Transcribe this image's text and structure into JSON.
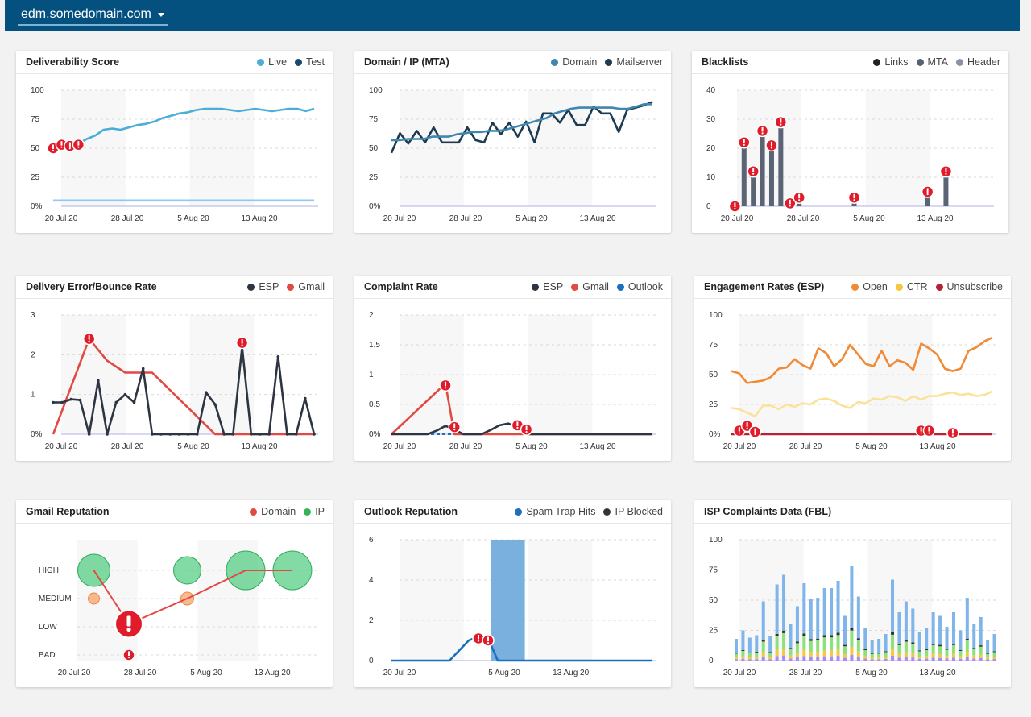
{
  "header": {
    "domain": "edm.somedomain.com"
  },
  "panels": [
    {
      "title": "Deliverability Score",
      "legend": [
        {
          "label": "Live",
          "color": "#4aaed9"
        },
        {
          "label": "Test",
          "color": "#154a6e"
        }
      ],
      "chart_data": {
        "type": "line",
        "ylim": [
          0,
          100
        ],
        "yticks": [
          "100",
          "75",
          "50",
          "25",
          "0%"
        ],
        "xticks": [
          "20 Jul 20",
          "28 Jul 20",
          "5 Aug 20",
          "13 Aug 20"
        ],
        "series": [
          {
            "name": "Live",
            "color": "#4aaed9",
            "values": [
              51,
              52,
              53,
              54,
              58,
              61,
              66,
              67,
              66,
              68,
              70,
              71,
              73,
              76,
              78,
              80,
              81,
              83,
              84,
              84,
              84,
              83,
              82,
              83,
              84,
              83,
              82,
              83,
              84,
              84,
              82,
              84
            ]
          },
          {
            "name": "Test",
            "color": "#8cc9f5",
            "values": [
              5,
              5,
              5,
              5,
              5,
              5,
              5,
              5,
              5,
              5,
              5,
              5,
              5,
              5,
              5,
              5,
              5,
              5,
              5,
              5,
              5,
              5,
              5,
              5,
              5,
              5,
              5,
              5,
              5,
              5,
              5,
              5
            ]
          }
        ],
        "alerts": [
          {
            "i": 0,
            "v": 50
          },
          {
            "i": 1,
            "v": 53
          },
          {
            "i": 2,
            "v": 52
          },
          {
            "i": 3,
            "v": 53
          }
        ]
      }
    },
    {
      "title": "Domain / IP (MTA)",
      "legend": [
        {
          "label": "Domain",
          "color": "#3f87ae"
        },
        {
          "label": "Mailserver",
          "color": "#1d3a50"
        }
      ],
      "chart_data": {
        "type": "line",
        "ylim": [
          0,
          100
        ],
        "yticks": [
          "100",
          "75",
          "50",
          "25",
          "0%"
        ],
        "xticks": [
          "20 Jul 20",
          "28 Jul 20",
          "5 Aug 20",
          "13 Aug 20"
        ],
        "series": [
          {
            "name": "Domain",
            "color": "#3f87ae",
            "values": [
              57,
              57,
              58,
              58,
              58,
              60,
              60,
              60,
              62,
              63,
              64,
              64,
              65,
              65,
              66,
              68,
              70,
              72,
              74,
              76,
              80,
              82,
              84,
              85,
              85,
              85,
              85,
              85,
              84,
              84,
              86,
              88,
              88
            ]
          },
          {
            "name": "Mailserver",
            "color": "#1d3a50",
            "values": [
              46,
              63,
              54,
              65,
              55,
              68,
              55,
              55,
              55,
              68,
              57,
              55,
              72,
              62,
              72,
              60,
              73,
              55,
              80,
              80,
              72,
              83,
              70,
              70,
              86,
              80,
              80,
              64,
              83,
              85,
              87,
              90
            ]
          }
        ],
        "alerts": []
      }
    },
    {
      "title": "Blacklists",
      "legend": [
        {
          "label": "Links",
          "color": "#222"
        },
        {
          "label": "MTA",
          "color": "#566274"
        },
        {
          "label": "Header",
          "color": "#8a93a5"
        }
      ],
      "chart_data": {
        "type": "bar",
        "ylim": [
          0,
          40
        ],
        "yticks": [
          "40",
          "30",
          "20",
          "10",
          "0"
        ],
        "xticks": [
          "20 Jul 20",
          "28 Jul 20",
          "5 Aug 20",
          "13 Aug 20"
        ],
        "bars": [
          {
            "i": 1,
            "v": 0
          },
          {
            "i": 2,
            "v": 22
          },
          {
            "i": 3,
            "v": 12
          },
          {
            "i": 4,
            "v": 26
          },
          {
            "i": 5,
            "v": 21
          },
          {
            "i": 6,
            "v": 29
          },
          {
            "i": 7,
            "v": 1
          },
          {
            "i": 8,
            "v": 3
          },
          {
            "i": 14,
            "v": 3
          },
          {
            "i": 22,
            "v": 5
          },
          {
            "i": 24,
            "v": 12
          }
        ]
      }
    },
    {
      "title": "Delivery Error/Bounce Rate",
      "legend": [
        {
          "label": "ESP",
          "color": "#2d3442"
        },
        {
          "label": "Gmail",
          "color": "#e04a42"
        }
      ],
      "chart_data": {
        "type": "line",
        "ylim": [
          0,
          3
        ],
        "yticks": [
          "3",
          "2",
          "1",
          "0%"
        ],
        "xticks": [
          "20 Jul 20",
          "28 Jul 20",
          "5 Aug 20",
          "13 Aug 20"
        ],
        "series": [
          {
            "name": "ESP",
            "color": "#2d3442",
            "values": [
              0.8,
              0.8,
              0.88,
              0.86,
              0.0,
              1.35,
              0.0,
              0.8,
              1.0,
              0.8,
              1.65,
              0.0,
              0.0,
              0.0,
              0.0,
              0.0,
              0.0,
              1.05,
              0.75,
              0.0,
              0.0,
              2.2,
              0.0,
              0.0,
              0.0,
              1.95,
              0.0,
              0.0,
              0.9,
              0.0
            ]
          },
          {
            "name": "Gmail",
            "color": "#e04a42",
            "values": [
              0.0,
              null,
              null,
              null,
              2.4,
              null,
              1.85,
              null,
              1.55,
              null,
              null,
              1.55,
              null,
              null,
              null,
              null,
              null,
              null,
              0.0,
              0.0,
              0.0,
              0.0,
              0.0,
              0.0,
              0.0,
              0.0,
              0.0,
              0.0,
              0.0,
              0.0
            ]
          }
        ],
        "alerts": [
          {
            "i": 4,
            "v": 2.4
          },
          {
            "i": 21,
            "v": 2.3
          }
        ]
      }
    },
    {
      "title": "Complaint Rate",
      "legend": [
        {
          "label": "ESP",
          "color": "#2d3442"
        },
        {
          "label": "Gmail",
          "color": "#e04a42"
        },
        {
          "label": "Outlook",
          "color": "#1a6fc0"
        }
      ],
      "chart_data": {
        "type": "line",
        "ylim": [
          0,
          2
        ],
        "yticks": [
          "2",
          "1.5",
          "1",
          "0.5",
          "0%"
        ],
        "xticks": [
          "20 Jul 20",
          "28 Jul 20",
          "5 Aug 20",
          "13 Aug 20"
        ],
        "series": [
          {
            "name": "ESP",
            "color": "#2d3442",
            "values": [
              0,
              0,
              0,
              0,
              0,
              0.06,
              0.14,
              0.08,
              0,
              0,
              0,
              0.07,
              0.15,
              0.18,
              0.12,
              0,
              0,
              0,
              0,
              0,
              0,
              0,
              0,
              0,
              0,
              0,
              0,
              0,
              0,
              0
            ]
          },
          {
            "name": "Gmail",
            "color": "#e04a42",
            "values": [
              0,
              null,
              null,
              null,
              null,
              null,
              0.85,
              0.0,
              0.0,
              0.0,
              0.0,
              0.0,
              0.0,
              0.0,
              0.0,
              0.0,
              0.0,
              0.0,
              0.0,
              0.0,
              0.0,
              0.0,
              0.0,
              0.0,
              0.0,
              0.0,
              0.0,
              0.0,
              0.0,
              0.0
            ]
          },
          {
            "name": "Outlook",
            "color": "#1a6fc0",
            "values": [
              0,
              0,
              0,
              0,
              0,
              0,
              0,
              0,
              0,
              0,
              0,
              0,
              0,
              0,
              0,
              0,
              0,
              0,
              0,
              0,
              0,
              0,
              0,
              0,
              0,
              0,
              0,
              0,
              0,
              0
            ],
            "dashed": true
          }
        ],
        "alerts": [
          {
            "i": 6,
            "v": 0.82
          },
          {
            "i": 7,
            "v": 0.12
          },
          {
            "i": 14,
            "v": 0.15
          },
          {
            "i": 15,
            "v": 0.08
          }
        ]
      }
    },
    {
      "title": "Engagement Rates (ESP)",
      "legend": [
        {
          "label": "Open",
          "color": "#f08a35"
        },
        {
          "label": "CTR",
          "color": "#f6c842"
        },
        {
          "label": "Unsubscribe",
          "color": "#b52234"
        }
      ],
      "chart_data": {
        "type": "line",
        "ylim": [
          0,
          100
        ],
        "yticks": [
          "100",
          "75",
          "50",
          "25",
          "0%"
        ],
        "xticks": [
          "20 Jul 20",
          "28 Jul 20",
          "5 Aug 20",
          "13 Aug 20"
        ],
        "series": [
          {
            "name": "Open",
            "color": "#f08a35",
            "values": [
              53,
              51,
              43,
              44,
              45,
              48,
              55,
              56,
              63,
              58,
              55,
              72,
              68,
              57,
              63,
              75,
              67,
              59,
              57,
              70,
              57,
              62,
              60,
              54,
              76,
              72,
              67,
              55,
              53,
              55,
              70,
              73,
              78,
              81
            ]
          },
          {
            "name": "CTR",
            "color": "#fbe29a",
            "values": [
              22,
              21,
              18,
              15,
              24,
              24,
              21,
              25,
              23,
              26,
              25,
              29,
              30,
              28,
              24,
              22,
              27,
              26,
              30,
              29,
              32,
              31,
              28,
              32,
              29,
              32,
              32,
              34,
              35,
              33,
              34,
              32,
              33,
              36
            ]
          },
          {
            "name": "Unsubscribe",
            "color": "#b52234",
            "values": [
              0,
              0,
              0,
              0,
              0,
              0,
              0,
              0,
              0,
              0,
              0,
              0,
              0,
              0,
              0,
              0,
              0,
              0,
              0,
              0,
              0,
              0,
              0,
              0,
              0,
              0,
              0,
              0,
              0,
              0,
              0,
              0,
              0,
              0
            ]
          }
        ],
        "alerts": [
          {
            "i": 1,
            "v": 3
          },
          {
            "i": 2,
            "v": 7
          },
          {
            "i": 3,
            "v": 2
          },
          {
            "i": 24,
            "v": 3
          },
          {
            "i": 25,
            "v": 3
          },
          {
            "i": 28,
            "v": 1
          }
        ]
      }
    },
    {
      "title": "Gmail Reputation",
      "legend": [
        {
          "label": "Domain",
          "color": "#e04a42"
        },
        {
          "label": "IP",
          "color": "#32b554"
        }
      ],
      "chart_data": {
        "type": "scatter",
        "yticks": [
          "HIGH",
          "MEDIUM",
          "LOW",
          "BAD"
        ],
        "xticks": [
          "20 Jul 20",
          "28 Jul 20",
          "5 Aug 20",
          "13 Aug 20"
        ],
        "bubbles": [
          {
            "i": 1,
            "level": 0,
            "r": 20,
            "color": "#3fc773"
          },
          {
            "i": 1,
            "level": 1,
            "r": 7,
            "color": "#f7a36b"
          },
          {
            "i": 9,
            "level": 0,
            "r": 17,
            "color": "#3fc773"
          },
          {
            "i": 9,
            "level": 1,
            "r": 8,
            "color": "#f7a36b"
          },
          {
            "i": 14,
            "level": 0,
            "r": 24,
            "color": "#3fc773"
          },
          {
            "i": 18,
            "level": 0,
            "r": 24,
            "color": "#3fc773"
          }
        ],
        "line": [
          {
            "i": 1,
            "level": 0
          },
          {
            "i": 4,
            "level": 1.9
          },
          {
            "i": 9,
            "level": 1
          },
          {
            "i": 14,
            "level": 0
          },
          {
            "i": 18,
            "level": 0
          }
        ],
        "alerts": [
          {
            "i": 4,
            "level": 1.9,
            "big": true
          },
          {
            "i": 4,
            "level": 3,
            "big": false
          }
        ]
      }
    },
    {
      "title": "Outlook Reputation",
      "legend": [
        {
          "label": "Spam Trap Hits",
          "color": "#1a6fc0"
        },
        {
          "label": "IP Blocked",
          "color": "#333"
        }
      ],
      "chart_data": {
        "type": "line",
        "ylim": [
          0,
          6
        ],
        "yticks": [
          "6",
          "4",
          "2",
          "0"
        ],
        "xticks": [
          "20 Jul 20",
          "5 Aug 20",
          "13 Aug 20"
        ],
        "xtick_index": [
          0,
          11,
          18
        ],
        "series": [
          {
            "name": "Spam Trap Hits",
            "color": "#1a6fc0",
            "values": [
              0,
              0,
              0,
              0,
              0,
              0,
              0,
              0.5,
              1.0,
              1.2,
              1.1,
              0,
              0,
              0,
              0,
              0,
              0,
              0,
              0,
              0,
              0,
              0,
              0,
              0,
              0,
              0,
              0,
              0
            ]
          }
        ],
        "band": {
          "from": 10.3,
          "to": 13.8,
          "v": 6,
          "color": "#7ab0dd"
        },
        "alerts": [
          {
            "i": 9,
            "v": 1.1
          },
          {
            "i": 10,
            "v": 1.0
          }
        ]
      }
    },
    {
      "title": "ISP Complaints Data (FBL)",
      "legend": [],
      "chart_data": {
        "type": "bar",
        "ylim": [
          0,
          100
        ],
        "yticks": [
          "100",
          "75",
          "50",
          "25",
          "0"
        ],
        "xticks": [
          "20 Jul 20",
          "28 Jul 20",
          "5 Aug 20",
          "13 Aug 20"
        ],
        "stacked": [
          18,
          25,
          19,
          21,
          49,
          20,
          63,
          71,
          30,
          45,
          64,
          51,
          52,
          60,
          60,
          66,
          37,
          78,
          53,
          27,
          17,
          18,
          22,
          67,
          40,
          49,
          43,
          24,
          27,
          40,
          37,
          28,
          40,
          25,
          52,
          30,
          36,
          17,
          22
        ]
      }
    }
  ]
}
